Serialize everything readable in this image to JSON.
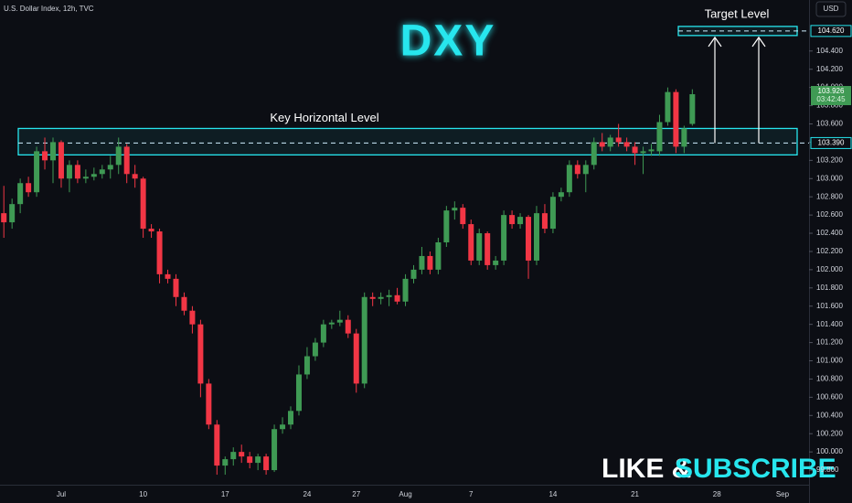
{
  "chart_data": {
    "type": "candlestick",
    "symbol": "U.S. Dollar Index, 12h, TVC",
    "currency": "USD",
    "title": "DXY",
    "promo_left": "LIKE &",
    "promo_right": "SUBSCRIBE",
    "up_color": "#3f9a54",
    "down_color": "#f23645",
    "accent_color": "#27e6ee",
    "grid": false,
    "ylim": [
      99.64,
      104.96
    ],
    "yticks": [
      {
        "value": 99.8,
        "label": "99.800"
      },
      {
        "value": 100.0,
        "label": "100.000"
      },
      {
        "value": 100.2,
        "label": "100.200"
      },
      {
        "value": 100.4,
        "label": "100.400"
      },
      {
        "value": 100.6,
        "label": "100.600"
      },
      {
        "value": 100.8,
        "label": "100.800"
      },
      {
        "value": 101.0,
        "label": "101.000"
      },
      {
        "value": 101.2,
        "label": "101.200"
      },
      {
        "value": 101.4,
        "label": "101.400"
      },
      {
        "value": 101.6,
        "label": "101.600"
      },
      {
        "value": 101.8,
        "label": "101.800"
      },
      {
        "value": 102.0,
        "label": "102.000"
      },
      {
        "value": 102.2,
        "label": "102.200"
      },
      {
        "value": 102.4,
        "label": "102.400"
      },
      {
        "value": 102.6,
        "label": "102.600"
      },
      {
        "value": 102.8,
        "label": "102.800"
      },
      {
        "value": 103.0,
        "label": "103.000"
      },
      {
        "value": 103.2,
        "label": "103.200"
      },
      {
        "value": 103.4,
        "label": "103.400"
      },
      {
        "value": 103.6,
        "label": "103.600"
      },
      {
        "value": 103.8,
        "label": "103.800"
      },
      {
        "value": 104.0,
        "label": "104.000"
      },
      {
        "value": 104.2,
        "label": "104.200"
      },
      {
        "value": 104.4,
        "label": "104.400"
      }
    ],
    "key_level": {
      "text": "Key Horizontal Level",
      "value": 103.39,
      "label": "103.390",
      "zone": [
        103.26,
        103.55
      ]
    },
    "target_level": {
      "text": "Target Level",
      "value": 104.62,
      "label": "104.620",
      "zone": [
        104.57,
        104.67
      ]
    },
    "last_price": {
      "value": 103.926,
      "label": "103.926",
      "countdown": "03:42:45"
    },
    "categories": [
      null,
      null,
      null,
      null,
      null,
      null,
      null,
      "Jul",
      null,
      null,
      null,
      null,
      null,
      null,
      null,
      null,
      null,
      "10",
      null,
      null,
      null,
      null,
      null,
      null,
      null,
      null,
      null,
      "17",
      null,
      null,
      null,
      null,
      null,
      null,
      null,
      null,
      null,
      "24",
      null,
      null,
      null,
      null,
      null,
      "27",
      null,
      null,
      null,
      null,
      null,
      "Aug",
      null,
      null,
      null,
      null,
      null,
      null,
      null,
      "7",
      null,
      null,
      null,
      null,
      null,
      null,
      null,
      null,
      null,
      "14",
      null,
      null,
      null,
      null,
      null,
      null,
      null,
      null,
      null,
      "21",
      null,
      null,
      null,
      null,
      null,
      null,
      null,
      null,
      null,
      "28",
      null,
      null,
      null,
      null,
      null,
      null,
      null,
      "Sep"
    ],
    "open": [
      102.62,
      102.52,
      102.72,
      102.95,
      102.85,
      103.3,
      103.2,
      103.4,
      103.0,
      103.15,
      103.0,
      103.02,
      103.05,
      103.1,
      103.15,
      103.35,
      103.05,
      103.0,
      102.45,
      102.42,
      101.95,
      101.9,
      101.7,
      101.55,
      101.4,
      100.75,
      100.3,
      99.85,
      99.92,
      100.0,
      99.95,
      99.88,
      99.95,
      99.8,
      100.25,
      100.3,
      100.45,
      100.85,
      101.05,
      101.2,
      101.4,
      101.42,
      101.45,
      101.3,
      100.75,
      101.7,
      101.68,
      101.7,
      101.72,
      101.65,
      101.9,
      102.0,
      102.15,
      102.0,
      102.3,
      102.65,
      102.68,
      102.5,
      102.1,
      102.4,
      102.05,
      102.1,
      102.6,
      102.5,
      102.58,
      102.1,
      102.62,
      102.45,
      102.8,
      102.85,
      103.15,
      103.05,
      103.15,
      103.4,
      103.35,
      103.45,
      103.4,
      103.35,
      103.28,
      103.3,
      103.3,
      103.62,
      103.95,
      103.35,
      103.6,
      null,
      null,
      null,
      null,
      null,
      null,
      null,
      null,
      null,
      null,
      null
    ],
    "high": [
      102.92,
      102.78,
      103.0,
      103.02,
      103.35,
      103.45,
      103.45,
      103.42,
      103.2,
      103.2,
      103.1,
      103.12,
      103.15,
      103.25,
      103.45,
      103.38,
      103.15,
      103.02,
      102.5,
      102.45,
      102.0,
      101.95,
      101.75,
      101.6,
      101.45,
      100.8,
      100.35,
      99.95,
      100.05,
      100.08,
      100.0,
      99.98,
      99.98,
      100.3,
      100.38,
      100.5,
      100.95,
      101.15,
      101.25,
      101.45,
      101.45,
      101.55,
      101.5,
      101.35,
      101.75,
      101.75,
      101.75,
      101.78,
      101.8,
      101.95,
      102.05,
      102.25,
      102.2,
      102.35,
      102.7,
      102.75,
      102.72,
      102.55,
      102.45,
      102.42,
      102.15,
      102.65,
      102.65,
      102.62,
      102.6,
      102.7,
      102.72,
      102.85,
      102.9,
      103.2,
      103.2,
      103.2,
      103.45,
      103.5,
      103.48,
      103.6,
      103.45,
      103.4,
      103.35,
      103.38,
      103.7,
      104.0,
      103.98,
      103.58,
      103.98,
      null,
      null,
      null,
      null,
      null,
      null,
      null,
      null,
      null,
      null,
      null
    ],
    "low": [
      102.35,
      102.45,
      102.62,
      102.8,
      102.8,
      103.1,
      102.95,
      102.9,
      102.85,
      102.95,
      102.95,
      102.98,
      103.0,
      103.0,
      103.05,
      102.95,
      102.9,
      102.35,
      102.35,
      101.85,
      101.85,
      101.6,
      101.5,
      101.3,
      100.6,
      100.25,
      99.75,
      99.75,
      99.85,
      99.88,
      99.82,
      99.8,
      99.75,
      99.78,
      100.2,
      100.25,
      100.4,
      100.8,
      101.0,
      101.15,
      101.35,
      101.38,
      101.25,
      100.65,
      100.7,
      101.6,
      101.62,
      101.6,
      101.62,
      101.6,
      101.85,
      101.95,
      101.95,
      101.95,
      102.25,
      102.55,
      102.45,
      102.05,
      102.05,
      102.0,
      102.0,
      102.05,
      102.45,
      102.45,
      101.9,
      102.05,
      102.4,
      102.4,
      102.75,
      102.8,
      103.0,
      102.85,
      103.1,
      103.3,
      103.3,
      103.35,
      103.3,
      103.15,
      103.05,
      103.25,
      103.25,
      103.58,
      103.28,
      103.28,
      103.58,
      null,
      null,
      null,
      null,
      null,
      null,
      null,
      null,
      null,
      null,
      null
    ],
    "close": [
      102.52,
      102.72,
      102.95,
      102.85,
      103.3,
      103.2,
      103.4,
      103.0,
      103.15,
      103.0,
      103.02,
      103.05,
      103.1,
      103.15,
      103.35,
      103.05,
      103.0,
      102.45,
      102.42,
      101.95,
      101.9,
      101.7,
      101.55,
      101.4,
      100.75,
      100.3,
      99.85,
      99.92,
      100.0,
      99.95,
      99.88,
      99.95,
      99.8,
      100.25,
      100.3,
      100.45,
      100.85,
      101.05,
      101.2,
      101.4,
      101.42,
      101.45,
      101.3,
      100.75,
      101.7,
      101.68,
      101.7,
      101.72,
      101.65,
      101.9,
      102.0,
      102.15,
      102.0,
      102.3,
      102.65,
      102.68,
      102.5,
      102.1,
      102.4,
      102.05,
      102.1,
      102.6,
      102.5,
      102.58,
      102.1,
      102.62,
      102.45,
      102.8,
      102.85,
      103.15,
      103.05,
      103.15,
      103.4,
      103.35,
      103.45,
      103.4,
      103.35,
      103.28,
      103.3,
      103.32,
      103.62,
      103.95,
      103.35,
      103.55,
      103.926,
      null,
      null,
      null,
      null,
      null,
      null,
      null,
      null,
      null,
      null,
      null
    ]
  }
}
